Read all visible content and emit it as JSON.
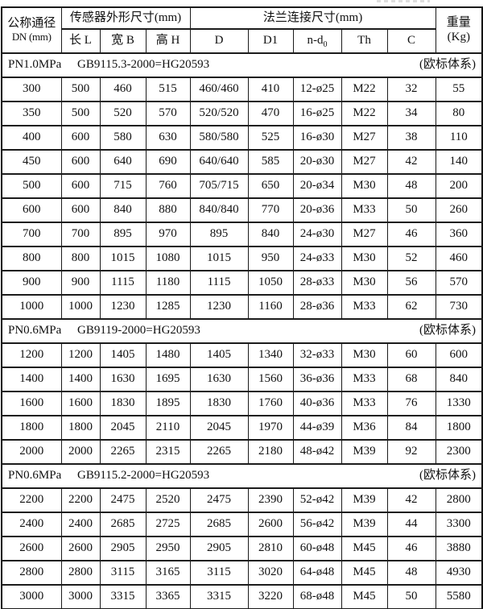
{
  "header": {
    "dn_line1": "公称通径",
    "dn_line2": "DN (mm)",
    "sensor_group": "传感器外形尺寸(mm)",
    "col_l": "长 L",
    "col_b": "宽 B",
    "col_h": "高 H",
    "flange_group": "法兰连接尺寸(mm)",
    "col_d": "D",
    "col_d1": "D1",
    "col_nd_base": "n-d",
    "col_nd_sub": "0",
    "col_th": "Th",
    "col_c": "C",
    "weight_line1": "重量",
    "weight_line2": "(Kg)"
  },
  "sections": [
    {
      "pressure": "PN1.0MPa",
      "standard": "GB9115.3-2000=HG20593",
      "system": "(欧标体系)",
      "rows": [
        [
          "300",
          "500",
          "460",
          "515",
          "460/460",
          "410",
          "12-ø25",
          "M22",
          "32",
          "55"
        ],
        [
          "350",
          "500",
          "520",
          "570",
          "520/520",
          "470",
          "16-ø25",
          "M22",
          "34",
          "80"
        ],
        [
          "400",
          "600",
          "580",
          "630",
          "580/580",
          "525",
          "16-ø30",
          "M27",
          "38",
          "110"
        ],
        [
          "450",
          "600",
          "640",
          "690",
          "640/640",
          "585",
          "20-ø30",
          "M27",
          "42",
          "140"
        ],
        [
          "500",
          "600",
          "715",
          "760",
          "705/715",
          "650",
          "20-ø34",
          "M30",
          "48",
          "200"
        ],
        [
          "600",
          "600",
          "840",
          "880",
          "840/840",
          "770",
          "20-ø36",
          "M33",
          "50",
          "260"
        ],
        [
          "700",
          "700",
          "895",
          "970",
          "895",
          "840",
          "24-ø30",
          "M27",
          "46",
          "360"
        ],
        [
          "800",
          "800",
          "1015",
          "1080",
          "1015",
          "950",
          "24-ø33",
          "M30",
          "52",
          "460"
        ],
        [
          "900",
          "900",
          "1115",
          "1180",
          "1115",
          "1050",
          "28-ø33",
          "M30",
          "56",
          "570"
        ],
        [
          "1000",
          "1000",
          "1230",
          "1285",
          "1230",
          "1160",
          "28-ø36",
          "M33",
          "62",
          "730"
        ]
      ]
    },
    {
      "pressure": "PN0.6MPa",
      "standard": "GB9119-2000=HG20593",
      "system": "(欧标体系)",
      "rows": [
        [
          "1200",
          "1200",
          "1405",
          "1480",
          "1405",
          "1340",
          "32-ø33",
          "M30",
          "60",
          "600"
        ],
        [
          "1400",
          "1400",
          "1630",
          "1695",
          "1630",
          "1560",
          "36-ø36",
          "M33",
          "68",
          "840"
        ],
        [
          "1600",
          "1600",
          "1830",
          "1895",
          "1830",
          "1760",
          "40-ø36",
          "M33",
          "76",
          "1330"
        ],
        [
          "1800",
          "1800",
          "2045",
          "2110",
          "2045",
          "1970",
          "44-ø39",
          "M36",
          "84",
          "1800"
        ],
        [
          "2000",
          "2000",
          "2265",
          "2315",
          "2265",
          "2180",
          "48-ø42",
          "M39",
          "92",
          "2300"
        ]
      ]
    },
    {
      "pressure": "PN0.6MPa",
      "standard": "GB9115.2-2000=HG20593",
      "system": "(欧标体系)",
      "rows": [
        [
          "2200",
          "2200",
          "2475",
          "2520",
          "2475",
          "2390",
          "52-ø42",
          "M39",
          "42",
          "2800"
        ],
        [
          "2400",
          "2400",
          "2685",
          "2725",
          "2685",
          "2600",
          "56-ø42",
          "M39",
          "44",
          "3300"
        ],
        [
          "2600",
          "2600",
          "2905",
          "2950",
          "2905",
          "2810",
          "60-ø48",
          "M45",
          "46",
          "3880"
        ],
        [
          "2800",
          "2800",
          "3115",
          "3165",
          "3115",
          "3020",
          "64-ø48",
          "M45",
          "48",
          "4930"
        ],
        [
          "3000",
          "3000",
          "3315",
          "3365",
          "3315",
          "3220",
          "68-ø48",
          "M45",
          "50",
          "5580"
        ]
      ]
    }
  ]
}
